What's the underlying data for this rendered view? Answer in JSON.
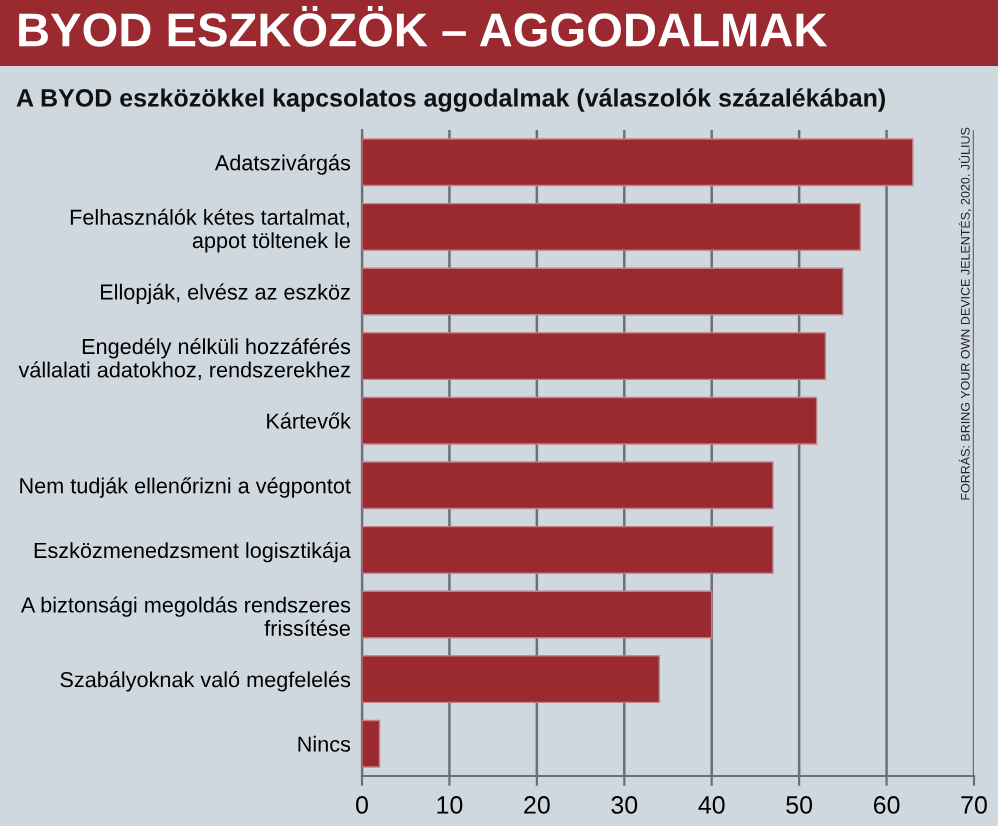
{
  "chart_data": {
    "type": "bar",
    "orientation": "horizontal",
    "title": "BYOD ESZKÖZÖK – AGGODALMAK",
    "subtitle": "A BYOD eszközökkel kapcsolatos aggodalmak (válaszolók százalékában)",
    "categories": [
      "Adatszivárgás",
      "Felhasználók kétes tartalmat,\nappot töltenek le",
      "Ellopják, elvész az eszköz",
      "Engedély nélküli hozzáférés\nvállalati adatokhoz, rendszerekhez",
      "Kártevők",
      "Nem tudják ellenőrizni a végpontot",
      "Eszközmenedzsment logisztikája",
      "A biztonsági megoldás rendszeres\nfrissítése",
      "Szabályoknak való megfelelés",
      "Nincs"
    ],
    "values": [
      63,
      57,
      55,
      53,
      52,
      47,
      47,
      40,
      34,
      2
    ],
    "color": "#9b2a30",
    "xlim": [
      0,
      70
    ],
    "xticks": [
      0,
      10,
      20,
      30,
      40,
      50,
      60,
      70
    ],
    "grid": "x",
    "annotations": [
      "FORRÁS: BRING YOUR OWN DEVICE JELENTÉS, 2020. JÚLIUS"
    ]
  }
}
